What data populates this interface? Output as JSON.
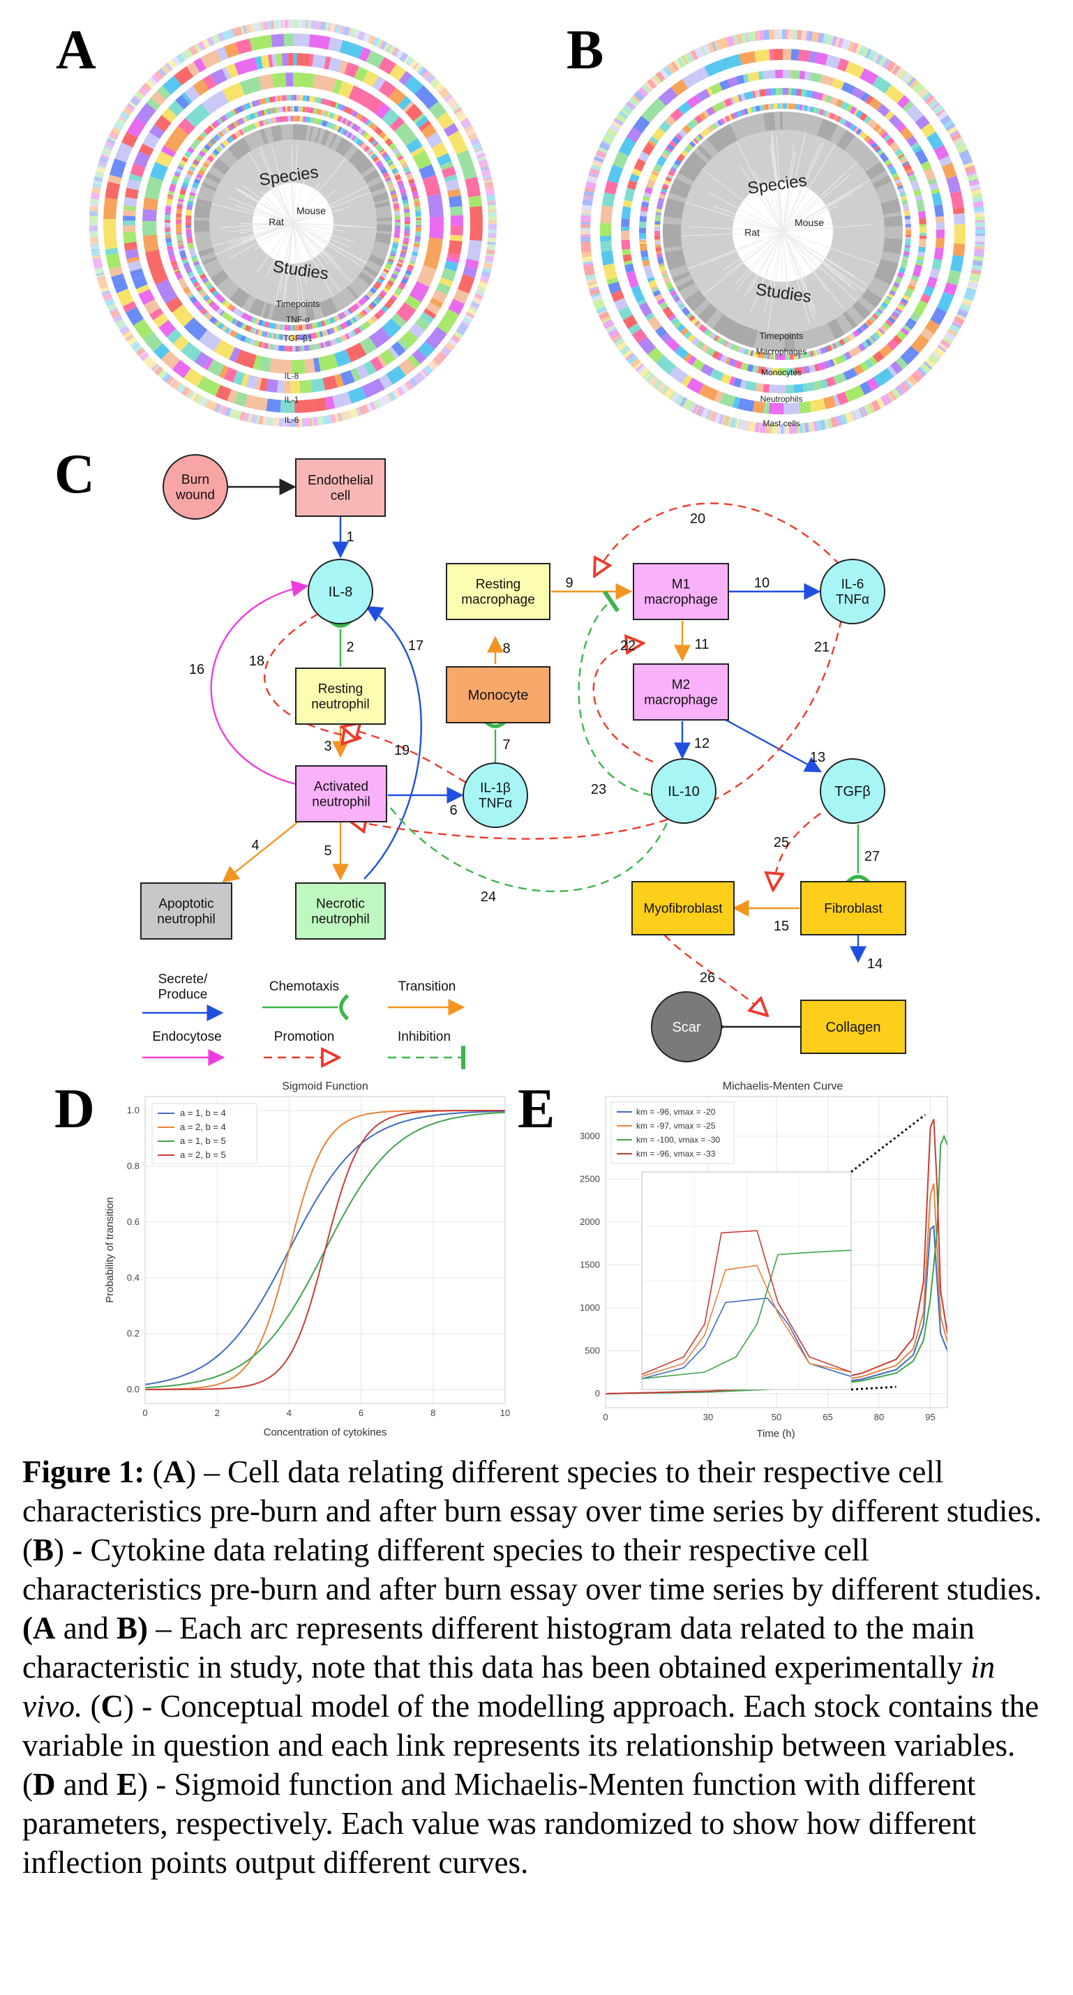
{
  "panels": {
    "a": "A",
    "b": "B",
    "c": "C",
    "d": "D",
    "e": "E"
  },
  "circos_a": {
    "species": "Species",
    "rat": "Rat",
    "mouse": "Mouse",
    "studies": "Studies",
    "tracks": [
      "Timepoints",
      "TNF-α",
      "TGF-β1",
      "IL-8",
      "IL-1",
      "IL-6"
    ]
  },
  "circos_b": {
    "species": "Species",
    "rat": "Rat",
    "mouse": "Mouse",
    "studies": "Studies",
    "tracks": [
      "Timepoints",
      "Macrophages",
      "Monocytes",
      "Neutrophils",
      "Mast cells"
    ]
  },
  "diagram": {
    "nodes": {
      "burn": "Burn\nwound",
      "endo": "Endothelial\ncell",
      "il8": "IL-8",
      "rest_neu": "Resting\nneutrophil",
      "act_neu": "Activated\nneutrophil",
      "apop": "Apoptotic\nneutrophil",
      "necro": "Necrotic\nneutrophil",
      "rest_mac": "Resting\nmacrophage",
      "mono": "Monocyte",
      "il1b": "IL-1β\nTNFα",
      "m1": "M1\nmacrophage",
      "m2": "M2\nmacrophage",
      "il6": "IL-6\nTNFα",
      "il10": "IL-10",
      "tgfb": "TGFβ",
      "myo": "Myofibroblast",
      "fibro": "Fibroblast",
      "collagen": "Collagen",
      "scar": "Scar"
    },
    "edge_labels": [
      "1",
      "2",
      "3",
      "4",
      "5",
      "6",
      "7",
      "8",
      "9",
      "10",
      "11",
      "12",
      "13",
      "14",
      "15",
      "16",
      "17",
      "18",
      "19",
      "20",
      "21",
      "22",
      "23",
      "24",
      "25",
      "26",
      "27"
    ],
    "legend": {
      "secrete": "Secrete/\nProduce",
      "chemotaxis": "Chemotaxis",
      "transition": "Transition",
      "endocytose": "Endocytose",
      "promotion": "Promotion",
      "inhibition": "Inhibition"
    },
    "colors": {
      "blue": "#1f4fe0",
      "green": "#3cb54a",
      "orange": "#f39420",
      "magenta": "#ee3dde",
      "red": "#ee3a2a"
    }
  },
  "chart_data": [
    {
      "type": "line",
      "title": "Sigmoid Function",
      "xlabel": "Concentration of cytokines",
      "ylabel": "Probability of transition",
      "xlim": [
        0,
        10
      ],
      "ylim": [
        0,
        1.0
      ],
      "xticks": [
        0,
        2,
        4,
        6,
        8,
        10
      ],
      "yticks": [
        "0.0",
        "0.2",
        "0.4",
        "0.6",
        "0.8",
        "1.0"
      ],
      "grid": true,
      "legend_position": "top-left",
      "series": [
        {
          "name": "a = 1, b = 4",
          "a": 1,
          "b": 4,
          "color": "#3b6bbf"
        },
        {
          "name": "a = 2, b = 4",
          "a": 2,
          "b": 4,
          "color": "#e8823a"
        },
        {
          "name": "a = 1, b = 5",
          "a": 1,
          "b": 5,
          "color": "#3fa34d"
        },
        {
          "name": "a = 2, b = 5",
          "a": 2,
          "b": 5,
          "color": "#c93c36"
        }
      ]
    },
    {
      "type": "line",
      "title": "Michaelis-Menten Curve",
      "xlabel": "Time (h)",
      "ylabel": "",
      "xlim": [
        0,
        100
      ],
      "ylim": [
        0,
        3300
      ],
      "xtick_labels": [
        "0",
        "30",
        "50",
        "65",
        "80",
        "95"
      ],
      "yticks": [
        0,
        500,
        1000,
        1500,
        2000,
        2500,
        3000
      ],
      "grid": true,
      "legend_position": "top-left",
      "series": [
        {
          "name": "km = -96, vmax = -20",
          "color": "#3b6bbf",
          "x": [
            0,
            30,
            50,
            65,
            75,
            85,
            90,
            93,
            95,
            96,
            97,
            98,
            100
          ],
          "y": [
            0,
            20,
            60,
            110,
            170,
            280,
            450,
            800,
            1920,
            1950,
            1300,
            700,
            500
          ]
        },
        {
          "name": "km = -97, vmax = -25",
          "color": "#e8823a",
          "x": [
            0,
            30,
            50,
            65,
            75,
            85,
            90,
            93,
            95,
            96,
            97,
            98,
            100
          ],
          "y": [
            0,
            25,
            70,
            130,
            200,
            330,
            520,
            950,
            2300,
            2450,
            1700,
            900,
            600
          ]
        },
        {
          "name": "km = -100, vmax = -30",
          "color": "#3fa34d",
          "x": [
            0,
            30,
            50,
            65,
            75,
            85,
            90,
            93,
            95,
            97,
            98,
            99,
            100
          ],
          "y": [
            0,
            20,
            55,
            100,
            150,
            240,
            380,
            620,
            1100,
            1900,
            2900,
            3000,
            2900
          ]
        },
        {
          "name": "km = -96, vmax = -33",
          "color": "#c93c36",
          "x": [
            0,
            30,
            50,
            65,
            75,
            85,
            90,
            93,
            95,
            96,
            97,
            98,
            100
          ],
          "y": [
            0,
            30,
            80,
            150,
            240,
            400,
            650,
            1300,
            3100,
            3200,
            2400,
            1200,
            700
          ]
        }
      ]
    }
  ],
  "caption": {
    "fig": "Figure 1:",
    "s1_open": "(",
    "s1_letter": "A",
    "s1_close": ")",
    "s1_text": " – Cell data relating different species to their respective cell characteristics pre-burn and after burn essay over time series by different studies. (",
    "s2_letter": "B",
    "s2_text": ") - Cytokine data relating different species to their respective cell characteristics pre-burn and after burn essay over time series by different studies. ",
    "s3_bold": "(A",
    "s3_and": " and ",
    "s3_letter": "B",
    "s3_close": ")",
    "s3_text": " – Each arc represents different histogram data related to the main characteristic in study, note that this data has been obtained experimentally ",
    "s3_italic": "in vivo.",
    "s4_open": " (",
    "s4_letter": "C",
    "s4_text": ") - Conceptual model of the modelling approach. Each stock contains the variable in question and each link represents its relationship between variables. ",
    "s5_open": "(",
    "s5_letter": "D",
    "s5_and": " and ",
    "s5_letter2": "E",
    "s5_text": ") - Sigmoid function and Michaelis-Menten function with different parameters, respectively. Each value was randomized to show how different inflection points output different curves."
  }
}
